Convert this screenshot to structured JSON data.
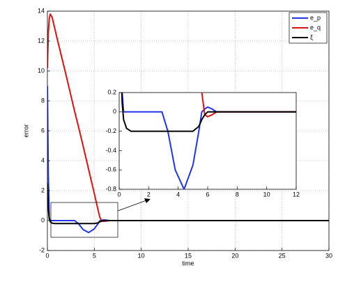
{
  "chart_data": {
    "type": "line",
    "x_label": "time",
    "y_label": "error",
    "x": [
      0,
      0.1,
      0.2,
      0.3,
      0.5,
      0.8,
      1.1,
      2,
      2.9,
      3.3,
      3.8,
      4.4,
      5,
      5.4,
      5.6,
      5.8,
      6,
      6.3,
      6.6,
      7,
      10,
      30
    ],
    "series": [
      {
        "name": "e_p",
        "color": "#2233ee",
        "values": [
          9,
          3,
          0.2,
          0,
          0,
          0,
          0,
          0,
          0,
          -0.2,
          -0.6,
          -0.8,
          -0.55,
          -0.2,
          0,
          0.03,
          0.05,
          0.03,
          0,
          0,
          0,
          0
        ]
      },
      {
        "name": "e_q",
        "color": "#dd1111",
        "values": [
          10.2,
          12.6,
          13.5,
          13.8,
          13.6,
          12.8,
          12.0,
          9.7,
          7.3,
          6.3,
          5.0,
          3.4,
          1.8,
          0.7,
          0.2,
          -0.03,
          -0.05,
          -0.03,
          0,
          0,
          0,
          0
        ]
      },
      {
        "name": "ξ",
        "color": "#000000",
        "values": [
          2.5,
          0.8,
          0.1,
          -0.08,
          -0.17,
          -0.2,
          -0.2,
          -0.2,
          -0.2,
          -0.2,
          -0.2,
          -0.2,
          -0.2,
          -0.15,
          -0.08,
          -0.03,
          0,
          0,
          0,
          0,
          0,
          0
        ]
      }
    ],
    "xlim": [
      0,
      30
    ],
    "xticks": [
      0,
      5,
      10,
      15,
      20,
      25,
      30
    ],
    "ylim": [
      -2,
      14
    ],
    "yticks": [
      -2,
      0,
      2,
      4,
      6,
      8,
      10,
      12,
      14
    ],
    "grid": true,
    "legend": "upper right",
    "inset": {
      "xlim": [
        0,
        12
      ],
      "xticks": [
        0,
        2,
        4,
        6,
        8,
        10,
        12
      ],
      "ylim": [
        -0.8,
        0.2
      ],
      "yticks": [
        -0.8,
        -0.6,
        -0.4,
        -0.2,
        0,
        0.2
      ]
    }
  }
}
